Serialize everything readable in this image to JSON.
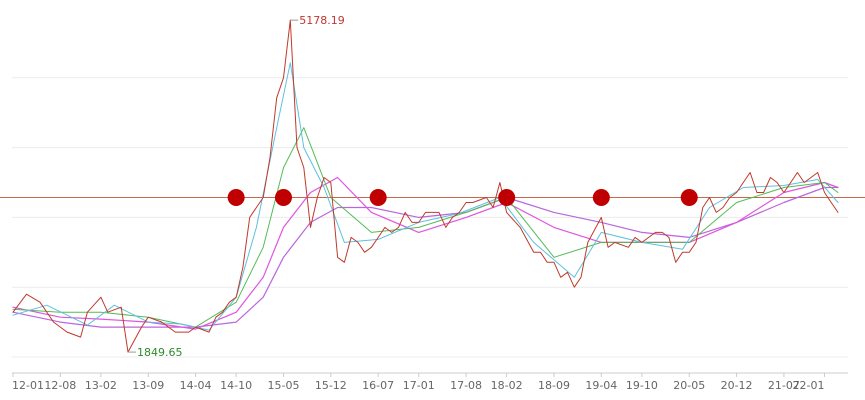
{
  "chart_data": {
    "type": "line",
    "title": "",
    "xlabel": "",
    "ylabel": "",
    "x_ticks": [
      "12-01",
      "12-08",
      "13-02",
      "13-09",
      "14-04",
      "14-10",
      "15-05",
      "15-12",
      "16-07",
      "17-01",
      "17-08",
      "18-02",
      "18-09",
      "19-04",
      "19-10",
      "20-05",
      "20-12",
      "21-07",
      "22-01"
    ],
    "ylim": [
      1650,
      5300
    ],
    "grid": "horizontal",
    "legend": "none",
    "reference_level": 3400,
    "price_series": [
      [
        "12-01",
        2250
      ],
      [
        "12-03",
        2430
      ],
      [
        "12-05",
        2350
      ],
      [
        "12-07",
        2150
      ],
      [
        "12-09",
        2050
      ],
      [
        "12-11",
        2000
      ],
      [
        "12-12",
        2250
      ],
      [
        "13-02",
        2400
      ],
      [
        "13-03",
        2250
      ],
      [
        "13-05",
        2300
      ],
      [
        "13-06",
        1849.65
      ],
      [
        "13-08",
        2100
      ],
      [
        "13-09",
        2200
      ],
      [
        "13-11",
        2150
      ],
      [
        "14-01",
        2050
      ],
      [
        "14-03",
        2050
      ],
      [
        "14-04",
        2100
      ],
      [
        "14-06",
        2050
      ],
      [
        "14-07",
        2200
      ],
      [
        "14-08",
        2250
      ],
      [
        "14-09",
        2350
      ],
      [
        "14-10",
        2400
      ],
      [
        "14-11",
        2700
      ],
      [
        "14-12",
        3200
      ],
      [
        "15-01",
        3300
      ],
      [
        "15-02",
        3400
      ],
      [
        "15-03",
        3800
      ],
      [
        "15-04",
        4400
      ],
      [
        "15-05",
        4600
      ],
      [
        "15-06",
        5178.19
      ],
      [
        "15-07",
        3900
      ],
      [
        "15-08",
        3700
      ],
      [
        "15-09",
        3100
      ],
      [
        "15-10",
        3400
      ],
      [
        "15-11",
        3600
      ],
      [
        "15-12",
        3550
      ],
      [
        "16-01",
        2800
      ],
      [
        "16-02",
        2750
      ],
      [
        "16-03",
        3000
      ],
      [
        "16-04",
        2950
      ],
      [
        "16-05",
        2850
      ],
      [
        "16-06",
        2900
      ],
      [
        "16-07",
        3000
      ],
      [
        "16-08",
        3100
      ],
      [
        "16-09",
        3050
      ],
      [
        "16-10",
        3100
      ],
      [
        "16-11",
        3250
      ],
      [
        "16-12",
        3150
      ],
      [
        "17-01",
        3150
      ],
      [
        "17-02",
        3250
      ],
      [
        "17-04",
        3250
      ],
      [
        "17-05",
        3100
      ],
      [
        "17-06",
        3200
      ],
      [
        "17-07",
        3250
      ],
      [
        "17-08",
        3350
      ],
      [
        "17-09",
        3350
      ],
      [
        "17-11",
        3400
      ],
      [
        "17-12",
        3300
      ],
      [
        "18-01",
        3550
      ],
      [
        "18-02",
        3250
      ],
      [
        "18-04",
        3100
      ],
      [
        "18-06",
        2850
      ],
      [
        "18-07",
        2850
      ],
      [
        "18-08",
        2750
      ],
      [
        "18-09",
        2750
      ],
      [
        "18-10",
        2600
      ],
      [
        "18-11",
        2650
      ],
      [
        "18-12",
        2500
      ],
      [
        "19-01",
        2600
      ],
      [
        "19-02",
        2950
      ],
      [
        "19-04",
        3200
      ],
      [
        "19-05",
        2900
      ],
      [
        "19-06",
        2950
      ],
      [
        "19-08",
        2900
      ],
      [
        "19-09",
        3000
      ],
      [
        "19-10",
        2950
      ],
      [
        "19-12",
        3050
      ],
      [
        "20-01",
        3050
      ],
      [
        "20-02",
        3000
      ],
      [
        "20-03",
        2750
      ],
      [
        "20-04",
        2850
      ],
      [
        "20-05",
        2850
      ],
      [
        "20-06",
        2950
      ],
      [
        "20-07",
        3300
      ],
      [
        "20-08",
        3400
      ],
      [
        "20-09",
        3250
      ],
      [
        "20-10",
        3300
      ],
      [
        "20-11",
        3400
      ],
      [
        "20-12",
        3450
      ],
      [
        "21-01",
        3550
      ],
      [
        "21-02",
        3650
      ],
      [
        "21-03",
        3450
      ],
      [
        "21-04",
        3450
      ],
      [
        "21-05",
        3600
      ],
      [
        "21-06",
        3550
      ],
      [
        "21-07",
        3450
      ],
      [
        "21-08",
        3550
      ],
      [
        "21-09",
        3650
      ],
      [
        "21-10",
        3550
      ],
      [
        "21-11",
        3600
      ],
      [
        "21-12",
        3650
      ],
      [
        "22-01",
        3450
      ],
      [
        "22-02",
        3350
      ],
      [
        "22-03",
        3250
      ]
    ],
    "ma_fast_series": [
      [
        "12-01",
        2220
      ],
      [
        "12-06",
        2320
      ],
      [
        "12-12",
        2120
      ],
      [
        "13-04",
        2320
      ],
      [
        "13-09",
        2150
      ],
      [
        "14-02",
        2130
      ],
      [
        "14-06",
        2070
      ],
      [
        "14-10",
        2400
      ],
      [
        "15-01",
        3100
      ],
      [
        "15-04",
        4100
      ],
      [
        "15-06",
        4750
      ],
      [
        "15-08",
        3900
      ],
      [
        "15-11",
        3500
      ],
      [
        "16-02",
        2950
      ],
      [
        "16-07",
        2980
      ],
      [
        "17-01",
        3150
      ],
      [
        "17-07",
        3240
      ],
      [
        "18-01",
        3400
      ],
      [
        "18-06",
        2950
      ],
      [
        "18-12",
        2600
      ],
      [
        "19-04",
        3050
      ],
      [
        "19-10",
        2950
      ],
      [
        "20-04",
        2880
      ],
      [
        "20-08",
        3300
      ],
      [
        "21-01",
        3500
      ],
      [
        "21-07",
        3520
      ],
      [
        "21-12",
        3580
      ],
      [
        "22-03",
        3350
      ]
    ],
    "ma_mid_series": [
      [
        "12-01",
        2280
      ],
      [
        "12-08",
        2250
      ],
      [
        "13-02",
        2250
      ],
      [
        "13-09",
        2200
      ],
      [
        "14-04",
        2100
      ],
      [
        "14-10",
        2350
      ],
      [
        "15-02",
        2900
      ],
      [
        "15-05",
        3700
      ],
      [
        "15-08",
        4100
      ],
      [
        "15-12",
        3400
      ],
      [
        "16-06",
        3050
      ],
      [
        "17-01",
        3100
      ],
      [
        "17-08",
        3250
      ],
      [
        "18-02",
        3400
      ],
      [
        "18-09",
        2800
      ],
      [
        "19-04",
        2950
      ],
      [
        "19-10",
        2950
      ],
      [
        "20-05",
        2950
      ],
      [
        "20-12",
        3350
      ],
      [
        "21-07",
        3500
      ],
      [
        "22-01",
        3550
      ],
      [
        "22-03",
        3450
      ]
    ],
    "ma_slow_series": [
      [
        "12-01",
        2300
      ],
      [
        "12-08",
        2200
      ],
      [
        "13-02",
        2180
      ],
      [
        "13-09",
        2150
      ],
      [
        "14-04",
        2080
      ],
      [
        "14-10",
        2250
      ],
      [
        "15-02",
        2600
      ],
      [
        "15-05",
        3100
      ],
      [
        "15-09",
        3450
      ],
      [
        "16-01",
        3600
      ],
      [
        "16-06",
        3250
      ],
      [
        "17-01",
        3050
      ],
      [
        "17-08",
        3200
      ],
      [
        "18-02",
        3350
      ],
      [
        "18-09",
        3100
      ],
      [
        "19-04",
        2950
      ],
      [
        "19-10",
        2950
      ],
      [
        "20-05",
        2950
      ],
      [
        "20-12",
        3150
      ],
      [
        "21-07",
        3450
      ],
      [
        "22-01",
        3550
      ],
      [
        "22-03",
        3500
      ]
    ],
    "ma_long_series": [
      [
        "12-01",
        2250
      ],
      [
        "12-08",
        2150
      ],
      [
        "13-02",
        2100
      ],
      [
        "13-09",
        2100
      ],
      [
        "14-04",
        2100
      ],
      [
        "14-10",
        2150
      ],
      [
        "15-02",
        2400
      ],
      [
        "15-05",
        2800
      ],
      [
        "15-09",
        3150
      ],
      [
        "16-01",
        3300
      ],
      [
        "16-06",
        3300
      ],
      [
        "17-01",
        3200
      ],
      [
        "17-08",
        3250
      ],
      [
        "18-02",
        3400
      ],
      [
        "18-09",
        3250
      ],
      [
        "19-04",
        3150
      ],
      [
        "19-10",
        3050
      ],
      [
        "20-05",
        3000
      ],
      [
        "20-12",
        3150
      ],
      [
        "21-07",
        3350
      ],
      [
        "22-01",
        3500
      ],
      [
        "22-03",
        3500
      ]
    ],
    "markers": [
      {
        "x": "14-10",
        "y": 3400
      },
      {
        "x": "15-05",
        "y": 3400
      },
      {
        "x": "16-07",
        "y": 3400
      },
      {
        "x": "18-02",
        "y": 3400
      },
      {
        "x": "19-04",
        "y": 3400
      },
      {
        "x": "20-05",
        "y": 3400
      }
    ],
    "annotations": [
      {
        "text": "5178.19",
        "x": "15-06",
        "y": 5178.19,
        "color": "#c23531"
      },
      {
        "text": "1849.65",
        "x": "13-06",
        "y": 1849.65,
        "color": "#2e8b2e"
      }
    ],
    "colors": {
      "price": "#c0392b",
      "ma_fast": "#5dc0e0",
      "ma_mid": "#55bb55",
      "ma_slow": "#e054e0",
      "ma_long": "#bb66dd",
      "reference": "#c46a4a",
      "marker": "#c00000",
      "grid": "#ececec",
      "axis": "#cccccc"
    }
  }
}
